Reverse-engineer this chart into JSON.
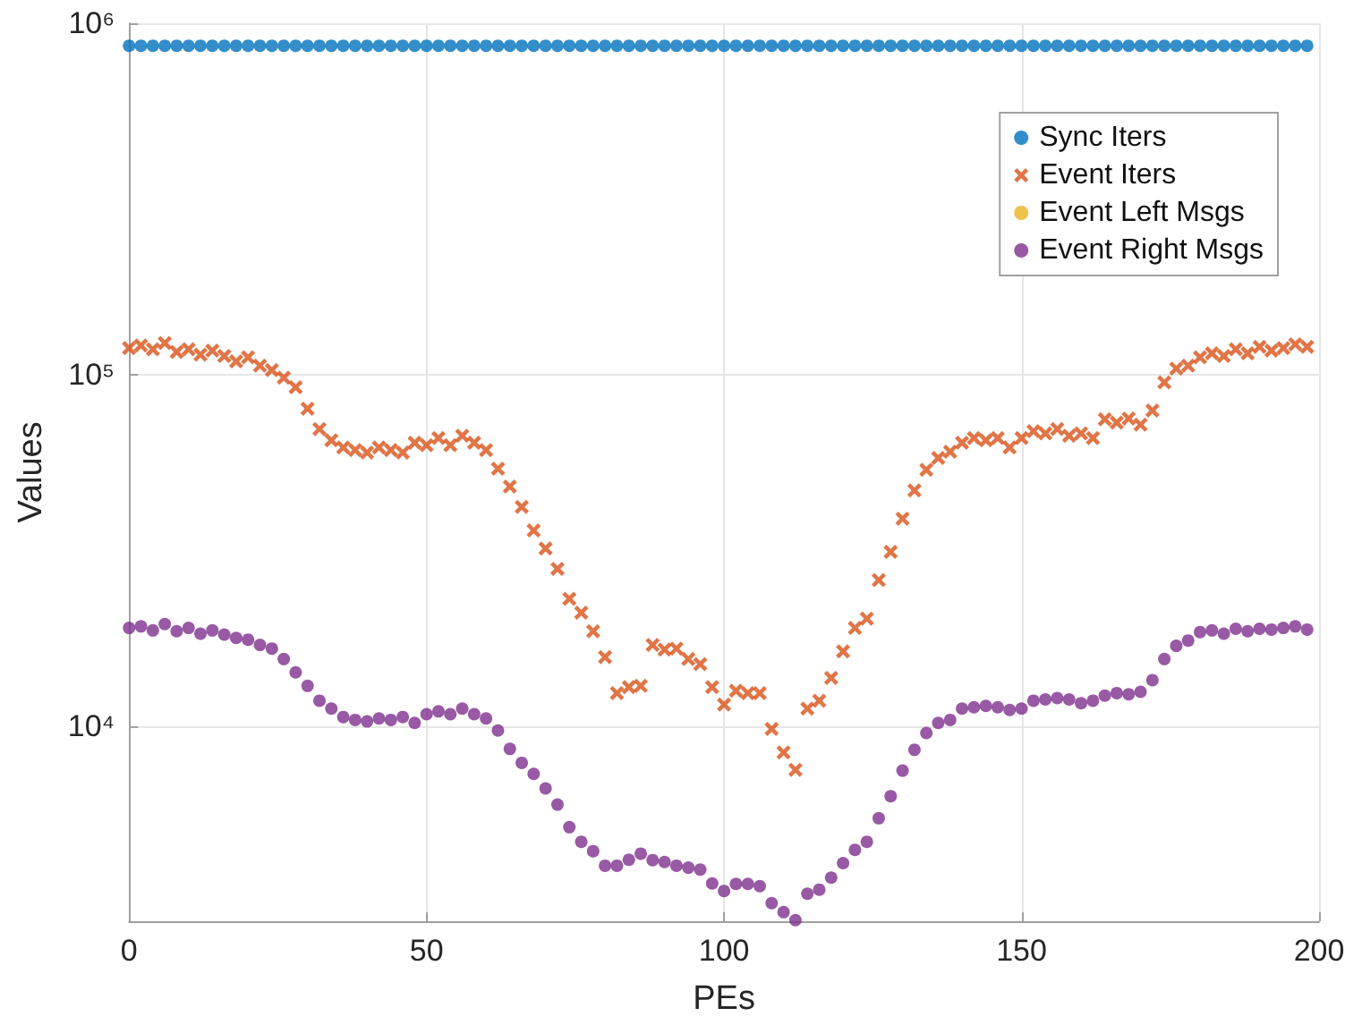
{
  "chart_data": {
    "type": "scatter",
    "xlabel": "PEs",
    "ylabel": "Values",
    "log": "y",
    "grid": true,
    "legend": "top right",
    "xlim": [
      0,
      200
    ],
    "xticks": [
      0,
      50,
      100,
      150,
      200
    ],
    "ylim": [
      2780,
      1000000
    ],
    "yticks": [
      {
        "value": 10000,
        "label": "10⁴"
      },
      {
        "value": 100000,
        "label": "10⁵"
      },
      {
        "value": 1000000,
        "label": "10⁶"
      }
    ],
    "x": [
      0,
      2,
      4,
      6,
      8,
      10,
      12,
      14,
      16,
      18,
      20,
      22,
      24,
      26,
      28,
      30,
      32,
      34,
      36,
      38,
      40,
      42,
      44,
      46,
      48,
      50,
      52,
      54,
      56,
      58,
      60,
      62,
      64,
      66,
      68,
      70,
      72,
      74,
      76,
      78,
      80,
      82,
      84,
      86,
      88,
      90,
      92,
      94,
      96,
      98,
      100,
      102,
      104,
      106,
      108,
      110,
      112,
      114,
      116,
      118,
      120,
      122,
      124,
      126,
      128,
      130,
      132,
      134,
      136,
      138,
      140,
      142,
      144,
      146,
      148,
      150,
      152,
      154,
      156,
      158,
      160,
      162,
      164,
      166,
      168,
      170,
      172,
      174,
      176,
      178,
      180,
      182,
      184,
      186,
      188,
      190,
      192,
      194,
      196,
      198
    ],
    "series": [
      {
        "name": "Sync Iters",
        "color": "#0072bd",
        "marker": "circle",
        "values": [
          863000,
          863000,
          863000,
          863000,
          863000,
          863000,
          863000,
          863000,
          863000,
          863000,
          863000,
          863000,
          863000,
          863000,
          863000,
          863000,
          863000,
          863000,
          863000,
          863000,
          863000,
          863000,
          863000,
          863000,
          863000,
          863000,
          863000,
          863000,
          863000,
          863000,
          863000,
          863000,
          863000,
          863000,
          863000,
          863000,
          863000,
          863000,
          863000,
          863000,
          863000,
          863000,
          863000,
          863000,
          863000,
          863000,
          863000,
          863000,
          863000,
          863000,
          863000,
          863000,
          863000,
          863000,
          863000,
          863000,
          863000,
          863000,
          863000,
          863000,
          863000,
          863000,
          863000,
          863000,
          863000,
          863000,
          863000,
          863000,
          863000,
          863000,
          863000,
          863000,
          863000,
          863000,
          863000,
          863000,
          863000,
          863000,
          863000,
          863000,
          863000,
          863000,
          863000,
          863000,
          863000,
          863000,
          863000,
          863000,
          863000,
          863000,
          863000,
          863000,
          863000,
          863000,
          863000,
          863000,
          863000,
          863000,
          863000,
          863000
        ]
      },
      {
        "name": "Event Iters",
        "color": "#d95319",
        "marker": "cross",
        "values": [
          119000,
          121000,
          118000,
          123000,
          116000,
          118000,
          114000,
          117000,
          113000,
          109000,
          112000,
          106000,
          103000,
          98000,
          92000,
          80000,
          70000,
          65000,
          62000,
          61000,
          60000,
          62000,
          61000,
          60000,
          64000,
          63000,
          66000,
          63000,
          67000,
          64000,
          61000,
          54000,
          48000,
          42000,
          36000,
          32000,
          28000,
          23000,
          21000,
          18600,
          15700,
          12400,
          12900,
          13000,
          17000,
          16500,
          16600,
          15500,
          15000,
          12900,
          11500,
          12600,
          12400,
          12400,
          9800,
          8400,
          7500,
          11200,
          11800,
          13700,
          16300,
          19000,
          20200,
          26000,
          31300,
          38900,
          46800,
          53600,
          57900,
          60300,
          64000,
          66000,
          65000,
          66000,
          62000,
          66000,
          69000,
          68000,
          70000,
          67000,
          68000,
          66000,
          74600,
          73000,
          75000,
          72000,
          79000,
          95000,
          104000,
          106000,
          112000,
          115000,
          113000,
          118000,
          115000,
          120000,
          117000,
          119000,
          122000,
          120000
        ]
      },
      {
        "name": "Event Left Msgs",
        "color": "#edb120",
        "marker": "circle",
        "values": [
          null,
          null,
          null,
          null,
          null,
          null,
          null,
          null,
          null,
          null,
          null,
          null,
          null,
          null,
          null,
          null,
          null,
          null,
          null,
          null,
          null,
          null,
          null,
          null,
          null,
          null,
          null,
          null,
          null,
          null,
          null,
          null,
          null,
          null,
          null,
          null,
          null,
          null,
          null,
          null,
          null,
          null,
          null,
          null,
          null,
          null,
          null,
          null,
          null,
          null,
          null,
          null,
          null,
          null,
          null,
          null,
          null,
          null,
          null,
          null,
          null,
          null,
          null,
          null,
          null,
          null,
          null,
          null,
          null,
          null,
          null,
          null,
          null,
          null,
          null,
          null,
          null,
          null,
          null,
          null,
          null,
          null,
          null,
          null,
          null,
          null,
          null,
          null,
          null,
          null,
          null,
          null,
          null,
          null,
          null,
          null,
          null,
          null,
          null,
          null
        ]
      },
      {
        "name": "Event Right Msgs",
        "color": "#7e2f8e",
        "marker": "circle",
        "values": [
          19000,
          19200,
          18700,
          19500,
          18600,
          19000,
          18300,
          18700,
          18200,
          17800,
          17600,
          17000,
          16600,
          15500,
          14200,
          13000,
          11800,
          11200,
          10600,
          10400,
          10300,
          10500,
          10400,
          10600,
          10200,
          10800,
          11000,
          10800,
          11200,
          10800,
          10500,
          9700,
          8600,
          7850,
          7300,
          6640,
          5970,
          5150,
          4680,
          4400,
          4000,
          4000,
          4160,
          4330,
          4150,
          4100,
          4000,
          3950,
          3900,
          3560,
          3390,
          3550,
          3550,
          3500,
          3130,
          2950,
          2800,
          3330,
          3420,
          3700,
          4070,
          4440,
          4680,
          5460,
          6310,
          7460,
          8550,
          9550,
          10200,
          10400,
          11200,
          11300,
          11400,
          11300,
          11100,
          11200,
          11800,
          11900,
          12000,
          11900,
          11600,
          11800,
          12200,
          12400,
          12300,
          12500,
          13500,
          15500,
          16900,
          17500,
          18500,
          18700,
          18300,
          18900,
          18600,
          18900,
          18800,
          19000,
          19200,
          18800
        ]
      }
    ]
  }
}
